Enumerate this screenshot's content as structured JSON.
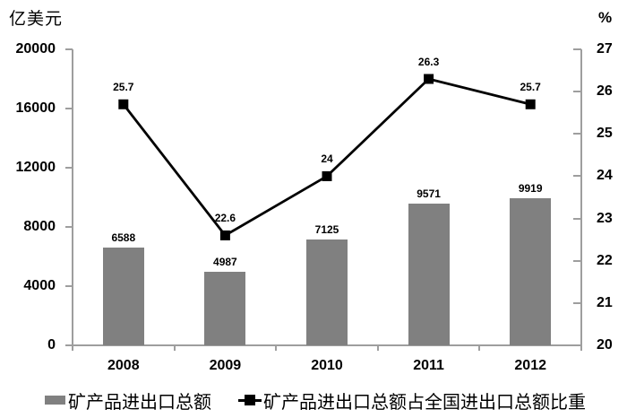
{
  "chart_data": {
    "type": "combo",
    "categories": [
      "2008",
      "2009",
      "2010",
      "2011",
      "2012"
    ],
    "series": [
      {
        "name": "矿产品进出口总额",
        "type": "bar",
        "axis": "left",
        "values": [
          6588,
          4987,
          7125,
          9571,
          9919
        ],
        "labels": [
          "6588",
          "4987",
          "7125",
          "9571",
          "9919"
        ],
        "color": "#808080"
      },
      {
        "name": "矿产品进出口总额占全国进出口总额比重",
        "type": "line",
        "axis": "right",
        "marker": "square",
        "values": [
          25.7,
          22.6,
          24,
          26.3,
          25.7
        ],
        "labels": [
          "25.7",
          "22.6",
          "24",
          "26.3",
          "25.7"
        ],
        "color": "#000000"
      }
    ],
    "left_axis": {
      "label": "亿美元",
      "min": 0,
      "max": 20000,
      "step": 4000,
      "tick_labels": [
        "0",
        "4000",
        "8000",
        "12000",
        "16000",
        "20000"
      ]
    },
    "right_axis": {
      "label": "%",
      "min": 20,
      "max": 27,
      "step": 1,
      "tick_labels": [
        "20",
        "21",
        "22",
        "23",
        "24",
        "25",
        "26",
        "27"
      ]
    },
    "grid": false,
    "legend_position": "bottom",
    "colors": {
      "bar": "#808080",
      "line": "#000000",
      "axis": "#9e9e9e",
      "text": "#000000",
      "background": "#ffffff"
    }
  },
  "legend": {
    "items": [
      {
        "label": "矿产品进出口总额",
        "swatch": "bar"
      },
      {
        "label": "矿产品进出口总额占全国进出口总额比重",
        "swatch": "line-square"
      }
    ]
  }
}
